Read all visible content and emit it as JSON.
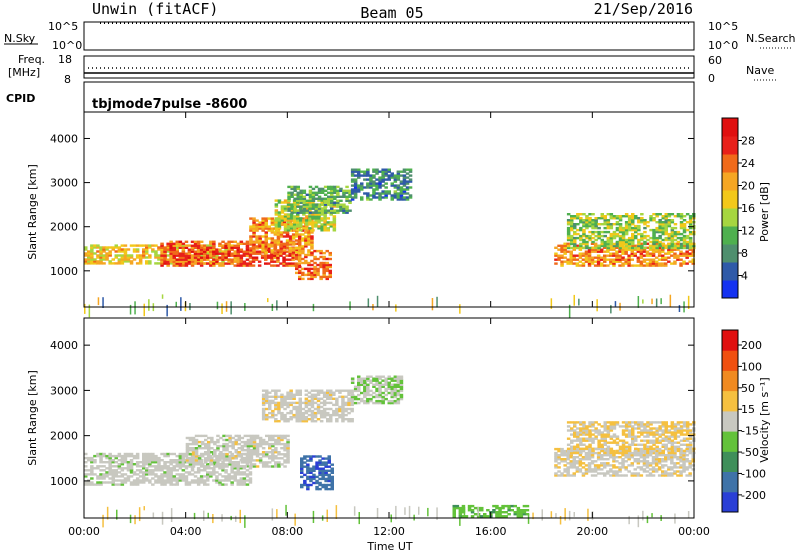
{
  "header": {
    "station": "Unwin (fitACF)",
    "beam": "Beam 05",
    "date": "21/Sep/2016"
  },
  "status_panels": {
    "nsky_label": "N.Sky",
    "nsky_ticks": [
      "10^5",
      "10^0"
    ],
    "nsearch_label": "N.Search",
    "nsearch_ticks": [
      "10^5",
      "10^0"
    ],
    "freq_label_1": "Freq.",
    "freq_label_2": "[MHz]",
    "freq_ticks": [
      "18",
      "8"
    ],
    "nave_label": "Nave",
    "nave_ticks": [
      "60",
      "0"
    ],
    "cpid_label": "CPID",
    "cpid_value": "tbjmode7pulse -8600"
  },
  "chart_data": [
    {
      "type": "heatmap",
      "name_key": "power",
      "xlabel": "Time UT",
      "ylabel": "Slant Range [km]",
      "x_tick_labels": [
        "00:00",
        "04:00",
        "08:00",
        "12:00",
        "16:00",
        "20:00",
        "00:00"
      ],
      "x_range_hours": [
        0,
        24
      ],
      "y_ticks": [
        1000,
        2000,
        3000,
        4000
      ],
      "y_range_km": [
        180,
        4600
      ],
      "colorbar": {
        "label": "Power [dB]",
        "tick_labels": [
          "28",
          "24",
          "20",
          "16",
          "12",
          "8",
          "4"
        ],
        "colors": [
          "#1432f0",
          "#2f5aa8",
          "#4f8f6e",
          "#4fb04f",
          "#a6d640",
          "#f2c81a",
          "#f5a623",
          "#f06a1a",
          "#e8201a",
          "#e01010"
        ]
      },
      "bands": [
        {
          "t": [
            0.0,
            6.0
          ],
          "r": [
            1150,
            1600
          ],
          "v": 18
        },
        {
          "t": [
            3.0,
            8.5
          ],
          "r": [
            1100,
            1650
          ],
          "v": 25
        },
        {
          "t": [
            6.5,
            9.0
          ],
          "r": [
            1400,
            2200
          ],
          "v": 22
        },
        {
          "t": [
            7.5,
            9.8
          ],
          "r": [
            1900,
            2600
          ],
          "v": 15
        },
        {
          "t": [
            8.3,
            9.7
          ],
          "r": [
            800,
            1450
          ],
          "v": 24
        },
        {
          "t": [
            8.0,
            10.5
          ],
          "r": [
            2300,
            2900
          ],
          "v": 11
        },
        {
          "t": [
            10.5,
            12.8
          ],
          "r": [
            2600,
            3300
          ],
          "v": 8
        },
        {
          "t": [
            18.5,
            24.0
          ],
          "r": [
            1100,
            1600
          ],
          "v": 22
        },
        {
          "t": [
            19.0,
            24.0
          ],
          "r": [
            1500,
            2300
          ],
          "v": 14
        }
      ]
    },
    {
      "type": "heatmap",
      "name_key": "velocity",
      "xlabel": "Time UT",
      "ylabel": "Slant Range [km]",
      "x_tick_labels": [
        "00:00",
        "04:00",
        "08:00",
        "12:00",
        "16:00",
        "20:00",
        "00:00"
      ],
      "x_range_hours": [
        0,
        24
      ],
      "y_ticks": [
        1000,
        2000,
        3000,
        4000
      ],
      "y_range_km": [
        180,
        4600
      ],
      "colorbar": {
        "label": "Velocity [m s⁻¹]",
        "tick_labels": [
          "200",
          "100",
          "50",
          "15",
          "-15",
          "-50",
          "-100",
          "-200"
        ],
        "colors": [
          "#2a3fd6",
          "#3f73a8",
          "#3f8f5a",
          "#63c23a",
          "#c8c8c0",
          "#f5c040",
          "#f08a20",
          "#f05010",
          "#e01010"
        ]
      },
      "bands": [
        {
          "t": [
            0.0,
            6.5
          ],
          "r": [
            900,
            1600
          ],
          "v": -5
        },
        {
          "t": [
            4.0,
            8.0
          ],
          "r": [
            1300,
            2000
          ],
          "v": 0
        },
        {
          "t": [
            8.5,
            9.8
          ],
          "r": [
            800,
            1550
          ],
          "v": -180
        },
        {
          "t": [
            7.0,
            10.5
          ],
          "r": [
            2300,
            3000
          ],
          "v": 8
        },
        {
          "t": [
            10.5,
            12.5
          ],
          "r": [
            2700,
            3300
          ],
          "v": -20
        },
        {
          "t": [
            14.5,
            17.5
          ],
          "r": [
            200,
            450
          ],
          "v": -60
        },
        {
          "t": [
            18.5,
            24.0
          ],
          "r": [
            1100,
            1700
          ],
          "v": 12
        },
        {
          "t": [
            19.0,
            24.0
          ],
          "r": [
            1600,
            2300
          ],
          "v": 30
        }
      ]
    }
  ]
}
